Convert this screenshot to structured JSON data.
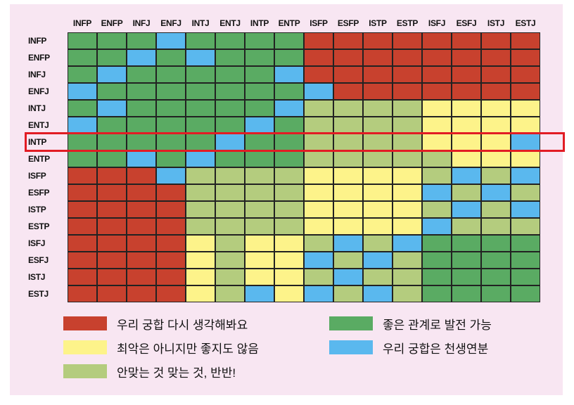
{
  "chart_data": {
    "type": "heatmap",
    "columns": [
      "INFP",
      "ENFP",
      "INFJ",
      "ENFJ",
      "INTJ",
      "ENTJ",
      "INTP",
      "ENTP",
      "ISFP",
      "ESFP",
      "ISTP",
      "ESTP",
      "ISFJ",
      "ESFJ",
      "ISTJ",
      "ESTJ"
    ],
    "rows": [
      "INFP",
      "ENFP",
      "INFJ",
      "ENFJ",
      "INTJ",
      "ENTJ",
      "INTP",
      "ENTP",
      "ISFP",
      "ESFP",
      "ISTP",
      "ESTP",
      "ISFJ",
      "ESFJ",
      "ISTJ",
      "ESTJ"
    ],
    "categories": {
      "R": {
        "label": "우리 궁합 다시 생각해봐요",
        "color": "#c8412e"
      },
      "G": {
        "label": "좋은 관계로 발전 가능",
        "color": "#5aab63"
      },
      "Y": {
        "label": "최악은 아니지만 좋지도 않음",
        "color": "#fdf38a"
      },
      "L": {
        "label": "안맞는 것 맞는 것, 반반!",
        "color": "#b4cc7e"
      },
      "B": {
        "label": "우리 궁합은 천생연분",
        "color": "#5ab8ee"
      }
    },
    "matrix": [
      [
        "G",
        "G",
        "G",
        "B",
        "G",
        "G",
        "G",
        "G",
        "R",
        "R",
        "R",
        "R",
        "R",
        "R",
        "R",
        "R"
      ],
      [
        "G",
        "G",
        "B",
        "G",
        "B",
        "G",
        "G",
        "G",
        "R",
        "R",
        "R",
        "R",
        "R",
        "R",
        "R",
        "R"
      ],
      [
        "G",
        "B",
        "G",
        "G",
        "G",
        "G",
        "G",
        "B",
        "R",
        "R",
        "R",
        "R",
        "R",
        "R",
        "R",
        "R"
      ],
      [
        "B",
        "G",
        "G",
        "G",
        "G",
        "G",
        "G",
        "G",
        "B",
        "R",
        "R",
        "R",
        "R",
        "R",
        "R",
        "R"
      ],
      [
        "G",
        "B",
        "G",
        "G",
        "G",
        "G",
        "G",
        "B",
        "L",
        "L",
        "L",
        "L",
        "Y",
        "Y",
        "Y",
        "Y"
      ],
      [
        "B",
        "G",
        "G",
        "G",
        "G",
        "G",
        "B",
        "G",
        "L",
        "L",
        "L",
        "L",
        "Y",
        "Y",
        "Y",
        "Y"
      ],
      [
        "G",
        "G",
        "G",
        "G",
        "G",
        "B",
        "G",
        "G",
        "L",
        "L",
        "L",
        "L",
        "Y",
        "Y",
        "Y",
        "B"
      ],
      [
        "G",
        "G",
        "B",
        "G",
        "B",
        "G",
        "G",
        "G",
        "L",
        "L",
        "L",
        "L",
        "L",
        "Y",
        "Y",
        "Y"
      ],
      [
        "R",
        "R",
        "R",
        "B",
        "L",
        "L",
        "L",
        "L",
        "Y",
        "Y",
        "Y",
        "Y",
        "L",
        "B",
        "L",
        "B"
      ],
      [
        "R",
        "R",
        "R",
        "R",
        "L",
        "L",
        "L",
        "L",
        "Y",
        "Y",
        "Y",
        "Y",
        "B",
        "L",
        "B",
        "L"
      ],
      [
        "R",
        "R",
        "R",
        "R",
        "L",
        "L",
        "L",
        "L",
        "Y",
        "Y",
        "Y",
        "Y",
        "L",
        "B",
        "L",
        "B"
      ],
      [
        "R",
        "R",
        "R",
        "R",
        "L",
        "L",
        "L",
        "L",
        "Y",
        "Y",
        "Y",
        "Y",
        "B",
        "L",
        "L",
        "L"
      ],
      [
        "R",
        "R",
        "R",
        "R",
        "Y",
        "L",
        "Y",
        "Y",
        "L",
        "B",
        "L",
        "B",
        "G",
        "G",
        "G",
        "G"
      ],
      [
        "R",
        "R",
        "R",
        "R",
        "Y",
        "L",
        "Y",
        "Y",
        "B",
        "L",
        "B",
        "L",
        "G",
        "G",
        "G",
        "G"
      ],
      [
        "R",
        "R",
        "R",
        "R",
        "Y",
        "L",
        "Y",
        "Y",
        "L",
        "B",
        "L",
        "L",
        "G",
        "G",
        "G",
        "G"
      ],
      [
        "R",
        "R",
        "R",
        "R",
        "Y",
        "L",
        "B",
        "Y",
        "B",
        "L",
        "B",
        "L",
        "G",
        "G",
        "G",
        "G"
      ]
    ],
    "highlighted_row": "INTP",
    "legend_order": [
      "R",
      "G",
      "Y",
      "B",
      "L"
    ]
  }
}
